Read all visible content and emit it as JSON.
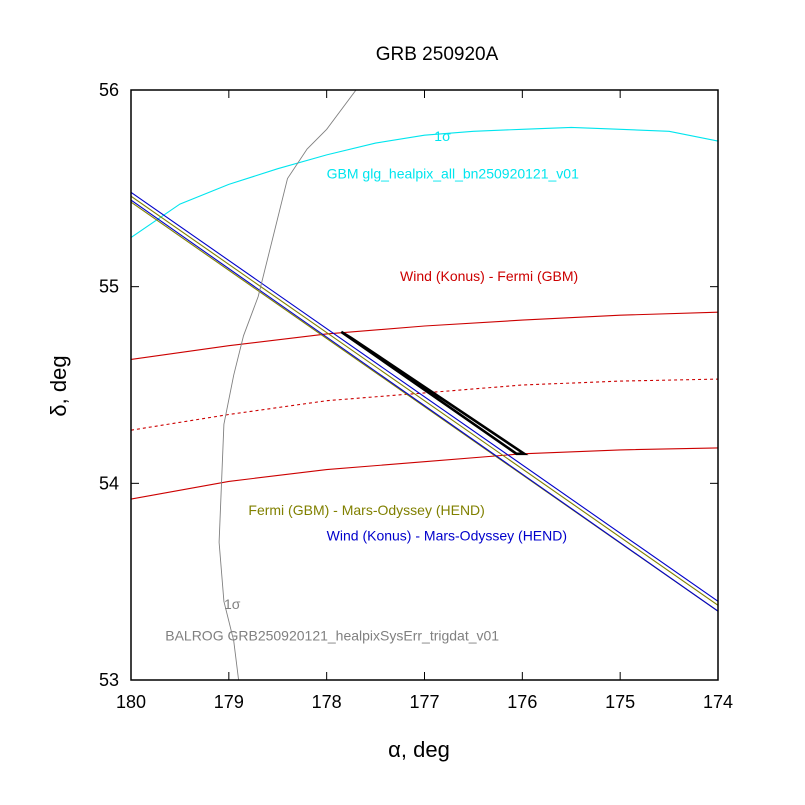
{
  "chart_data": {
    "type": "line",
    "title": "GRB 250920A",
    "xlabel": "α, deg",
    "ylabel": "δ, deg",
    "xlim": [
      180,
      174
    ],
    "ylim": [
      53,
      56
    ],
    "xticks": [
      180,
      179,
      178,
      177,
      176,
      175,
      174
    ],
    "yticks": [
      53,
      54,
      55,
      56
    ],
    "colors": {
      "gbm": "#00e5ee",
      "konus_gbm": "#cc0000",
      "gbm_hend": "#808000",
      "konus_hend": "#0000cc",
      "balrog": "#808080",
      "box": "#000000"
    },
    "series": [
      {
        "name": "GBM 1σ contour",
        "style": "solid",
        "color": "gbm",
        "x": [
          180,
          179.5,
          179,
          178.5,
          178,
          177.5,
          177,
          176.5,
          176,
          175.5,
          175,
          174.5,
          174
        ],
        "y": [
          55.25,
          55.42,
          55.52,
          55.6,
          55.67,
          55.73,
          55.77,
          55.79,
          55.8,
          55.81,
          55.8,
          55.79,
          55.74
        ]
      },
      {
        "name": "Konus-GBM annulus edge 1",
        "style": "solid",
        "color": "konus_gbm",
        "x": [
          180,
          179,
          178,
          177,
          176,
          175,
          174
        ],
        "y": [
          54.63,
          54.7,
          54.76,
          54.8,
          54.83,
          54.855,
          54.87
        ]
      },
      {
        "name": "Konus-GBM annulus center",
        "style": "dashed",
        "color": "konus_gbm",
        "x": [
          180,
          179,
          178,
          177,
          176,
          175,
          174
        ],
        "y": [
          54.27,
          54.35,
          54.42,
          54.46,
          54.5,
          54.52,
          54.53
        ]
      },
      {
        "name": "Konus-GBM annulus edge 2",
        "style": "solid",
        "color": "konus_gbm",
        "x": [
          180,
          179,
          178,
          177,
          176,
          175,
          174
        ],
        "y": [
          53.92,
          54.01,
          54.07,
          54.11,
          54.15,
          54.17,
          54.18
        ]
      },
      {
        "name": "GBM-HEND annulus edge 1",
        "style": "solid",
        "color": "gbm_hend",
        "x": [
          180,
          174
        ],
        "y": [
          55.46,
          53.38
        ]
      },
      {
        "name": "GBM-HEND annulus edge 2",
        "style": "solid",
        "color": "gbm_hend",
        "x": [
          180,
          174
        ],
        "y": [
          55.43,
          53.35
        ]
      },
      {
        "name": "Konus-HEND annulus edge 1",
        "style": "solid",
        "color": "konus_hend",
        "x": [
          180,
          174
        ],
        "y": [
          55.48,
          53.4
        ]
      },
      {
        "name": "Konus-HEND annulus edge 2",
        "style": "solid",
        "color": "konus_hend",
        "x": [
          180,
          174
        ],
        "y": [
          55.44,
          53.35
        ]
      },
      {
        "name": "BALROG 1σ contour",
        "style": "solid",
        "color": "balrog",
        "x": [
          178.9,
          178.95,
          179.05,
          179.1,
          179.05,
          178.95,
          178.85,
          178.7,
          178.55,
          178.4,
          178.2,
          178.0,
          177.7
        ],
        "y": [
          53.0,
          53.2,
          53.4,
          53.7,
          54.3,
          54.55,
          54.75,
          54.95,
          55.25,
          55.55,
          55.7,
          55.8,
          56.0
        ]
      },
      {
        "name": "IPN error box",
        "style": "box",
        "color": "box",
        "x": [
          177.85,
          177.75,
          175.98,
          176.06,
          177.85
        ],
        "y": [
          54.77,
          54.74,
          54.15,
          54.15,
          54.77
        ]
      }
    ],
    "annotations": [
      {
        "id": "gbm_sigma",
        "text": "1σ",
        "color": "gbm",
        "x": 176.9,
        "y": 55.74
      },
      {
        "id": "gbm_name",
        "text": "GBM glg_healpix_all_bn250920121_v01",
        "color": "gbm",
        "x": 178.0,
        "y": 55.55
      },
      {
        "id": "konus_gbm_name",
        "text": "Wind (Konus) - Fermi (GBM)",
        "color": "konus_gbm",
        "x": 177.25,
        "y": 55.03
      },
      {
        "id": "gbm_hend_name",
        "text": "Fermi (GBM)  - Mars-Odyssey (HEND)",
        "color": "gbm_hend",
        "x": 178.8,
        "y": 53.84
      },
      {
        "id": "konus_hend_name",
        "text": "Wind (Konus)  - Mars-Odyssey (HEND)",
        "color": "konus_hend",
        "x": 178.0,
        "y": 53.71
      },
      {
        "id": "balrog_sigma",
        "text": "1σ",
        "color": "balrog",
        "x": 179.05,
        "y": 53.36
      },
      {
        "id": "balrog_name",
        "text": "BALROG GRB250920121_healpixSysErr_trigdat_v01",
        "color": "balrog",
        "x": 179.65,
        "y": 53.2
      }
    ]
  }
}
